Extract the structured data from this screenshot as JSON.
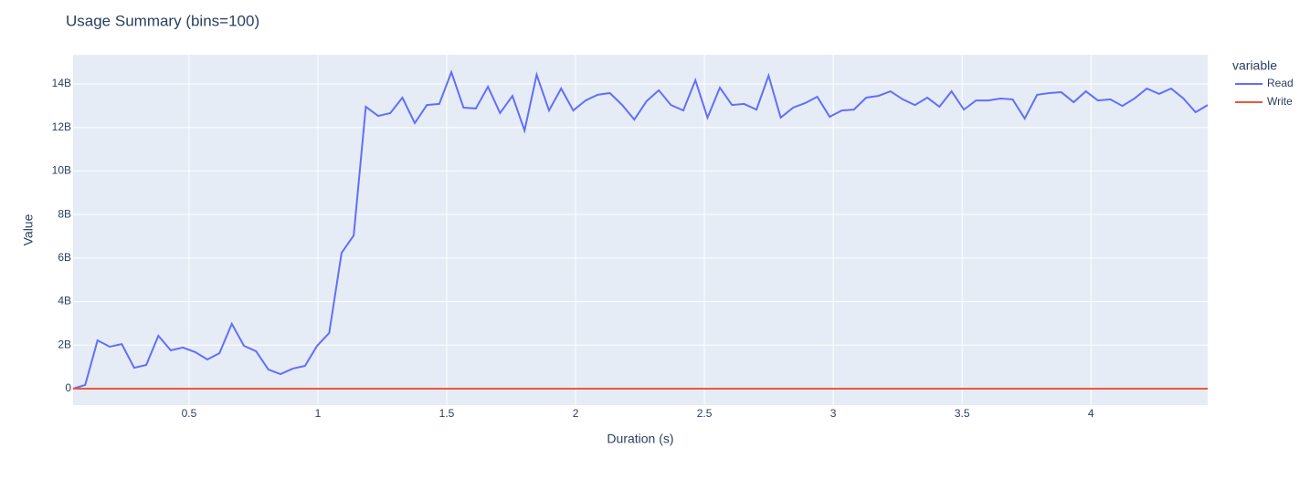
{
  "chart_data": {
    "type": "line",
    "title": "Usage Summary (bins=100)",
    "x_label": "Duration (s)",
    "y_label": "Value",
    "legend_title": "variable",
    "legend": "right",
    "grid": true,
    "x": [
      0.05,
      0.097,
      0.145,
      0.192,
      0.239,
      0.287,
      0.334,
      0.381,
      0.429,
      0.476,
      0.524,
      0.571,
      0.618,
      0.666,
      0.713,
      0.76,
      0.808,
      0.855,
      0.902,
      0.95,
      0.997,
      1.044,
      1.092,
      1.139,
      1.186,
      1.234,
      1.281,
      1.328,
      1.376,
      1.423,
      1.471,
      1.518,
      1.565,
      1.613,
      1.66,
      1.707,
      1.755,
      1.802,
      1.849,
      1.897,
      1.944,
      1.991,
      2.039,
      2.086,
      2.133,
      2.181,
      2.228,
      2.275,
      2.323,
      2.37,
      2.418,
      2.465,
      2.512,
      2.56,
      2.607,
      2.654,
      2.702,
      2.749,
      2.796,
      2.844,
      2.891,
      2.938,
      2.986,
      3.033,
      3.08,
      3.128,
      3.175,
      3.222,
      3.27,
      3.317,
      3.365,
      3.412,
      3.459,
      3.507,
      3.554,
      3.601,
      3.649,
      3.696,
      3.743,
      3.791,
      3.838,
      3.885,
      3.933,
      3.98,
      4.027,
      4.075,
      4.122,
      4.169,
      4.217,
      4.264,
      4.311,
      4.359,
      4.406,
      4.453
    ],
    "series": [
      {
        "name": "Read",
        "color": "#636efa",
        "values": [
          0,
          170000000.0,
          2220000000.0,
          1930000000.0,
          2050000000.0,
          960000000.0,
          1090000000.0,
          2430000000.0,
          1760000000.0,
          1890000000.0,
          1680000000.0,
          1340000000.0,
          1630000000.0,
          2980000000.0,
          1970000000.0,
          1720000000.0,
          880000000.0,
          670000000.0,
          920000000.0,
          1050000000.0,
          1970000000.0,
          2560000000.0,
          6240000000.0,
          7040000000.0,
          12950000000.0,
          12530000000.0,
          12660000000.0,
          13370000000.0,
          12200000000.0,
          13030000000.0,
          13080000000.0,
          14540000000.0,
          12910000000.0,
          12870000000.0,
          13870000000.0,
          12660000000.0,
          13450000000.0,
          11860000000.0,
          14420000000.0,
          12780000000.0,
          13790000000.0,
          12780000000.0,
          13240000000.0,
          13500000000.0,
          13580000000.0,
          13030000000.0,
          12360000000.0,
          13200000000.0,
          13710000000.0,
          13030000000.0,
          12780000000.0,
          14170000000.0,
          12450000000.0,
          13830000000.0,
          13030000000.0,
          13080000000.0,
          12820000000.0,
          14380000000.0,
          12450000000.0,
          12910000000.0,
          13120000000.0,
          13410000000.0,
          12490000000.0,
          12780000000.0,
          12820000000.0,
          13370000000.0,
          13450000000.0,
          13660000000.0,
          13290000000.0,
          13030000000.0,
          13370000000.0,
          12950000000.0,
          13660000000.0,
          12820000000.0,
          13240000000.0,
          13240000000.0,
          13330000000.0,
          13290000000.0,
          12410000000.0,
          13500000000.0,
          13580000000.0,
          13620000000.0,
          13160000000.0,
          13660000000.0,
          13240000000.0,
          13290000000.0,
          12990000000.0,
          13330000000.0,
          13790000000.0,
          13540000000.0,
          13790000000.0,
          13330000000.0,
          12700000000.0,
          13030000000.0
        ]
      },
      {
        "name": "Write",
        "color": "#EF553B",
        "values": [
          0,
          0,
          0,
          0,
          0,
          0,
          0,
          0,
          0,
          0,
          0,
          0,
          0,
          0,
          0,
          0,
          0,
          0,
          0,
          0,
          0,
          0,
          0,
          0,
          0,
          0,
          0,
          0,
          0,
          0,
          0,
          0,
          0,
          0,
          0,
          0,
          0,
          0,
          0,
          0,
          0,
          0,
          0,
          0,
          0,
          0,
          0,
          0,
          0,
          0,
          0,
          0,
          0,
          0,
          0,
          0,
          0,
          0,
          0,
          0,
          0,
          0,
          0,
          0,
          0,
          0,
          0,
          0,
          0,
          0,
          0,
          0,
          0,
          0,
          0,
          0,
          0,
          0,
          0,
          0,
          0,
          0,
          0,
          0,
          0,
          0,
          0,
          0,
          0,
          0,
          0,
          0,
          0,
          0
        ]
      }
    ],
    "xlim": [
      0.05,
      4.453
    ],
    "xticks": [
      0.5,
      1,
      1.5,
      2,
      2.5,
      3,
      3.5,
      4
    ],
    "ylim": [
      -754000000.0,
      15340000000.0
    ],
    "yticks": [
      0,
      {
        "value": 2000000000.0,
        "label": "2B"
      },
      {
        "value": 4000000000.0,
        "label": "4B"
      },
      {
        "value": 6000000000.0,
        "label": "6B"
      },
      {
        "value": 8000000000.0,
        "label": "8B"
      },
      {
        "value": 10000000000.0,
        "label": "10B"
      },
      {
        "value": 12000000000.0,
        "label": "12B"
      },
      {
        "value": 14000000000.0,
        "label": "14B"
      }
    ]
  }
}
